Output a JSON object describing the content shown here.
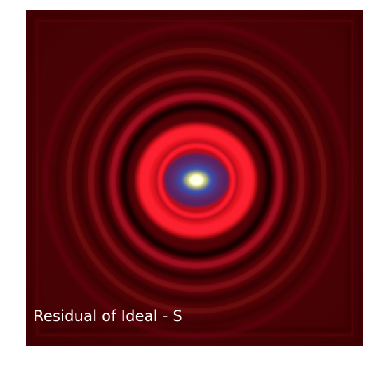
{
  "image": {
    "caption": "Residual of Ideal - S",
    "colors": {
      "background": "#4a0205",
      "ring_bright": "#f01424",
      "ring_dark": "#1a0003",
      "halo_blue": "#3c50a8",
      "core": "#fffdb0",
      "caption_text": "#ffffff"
    }
  }
}
